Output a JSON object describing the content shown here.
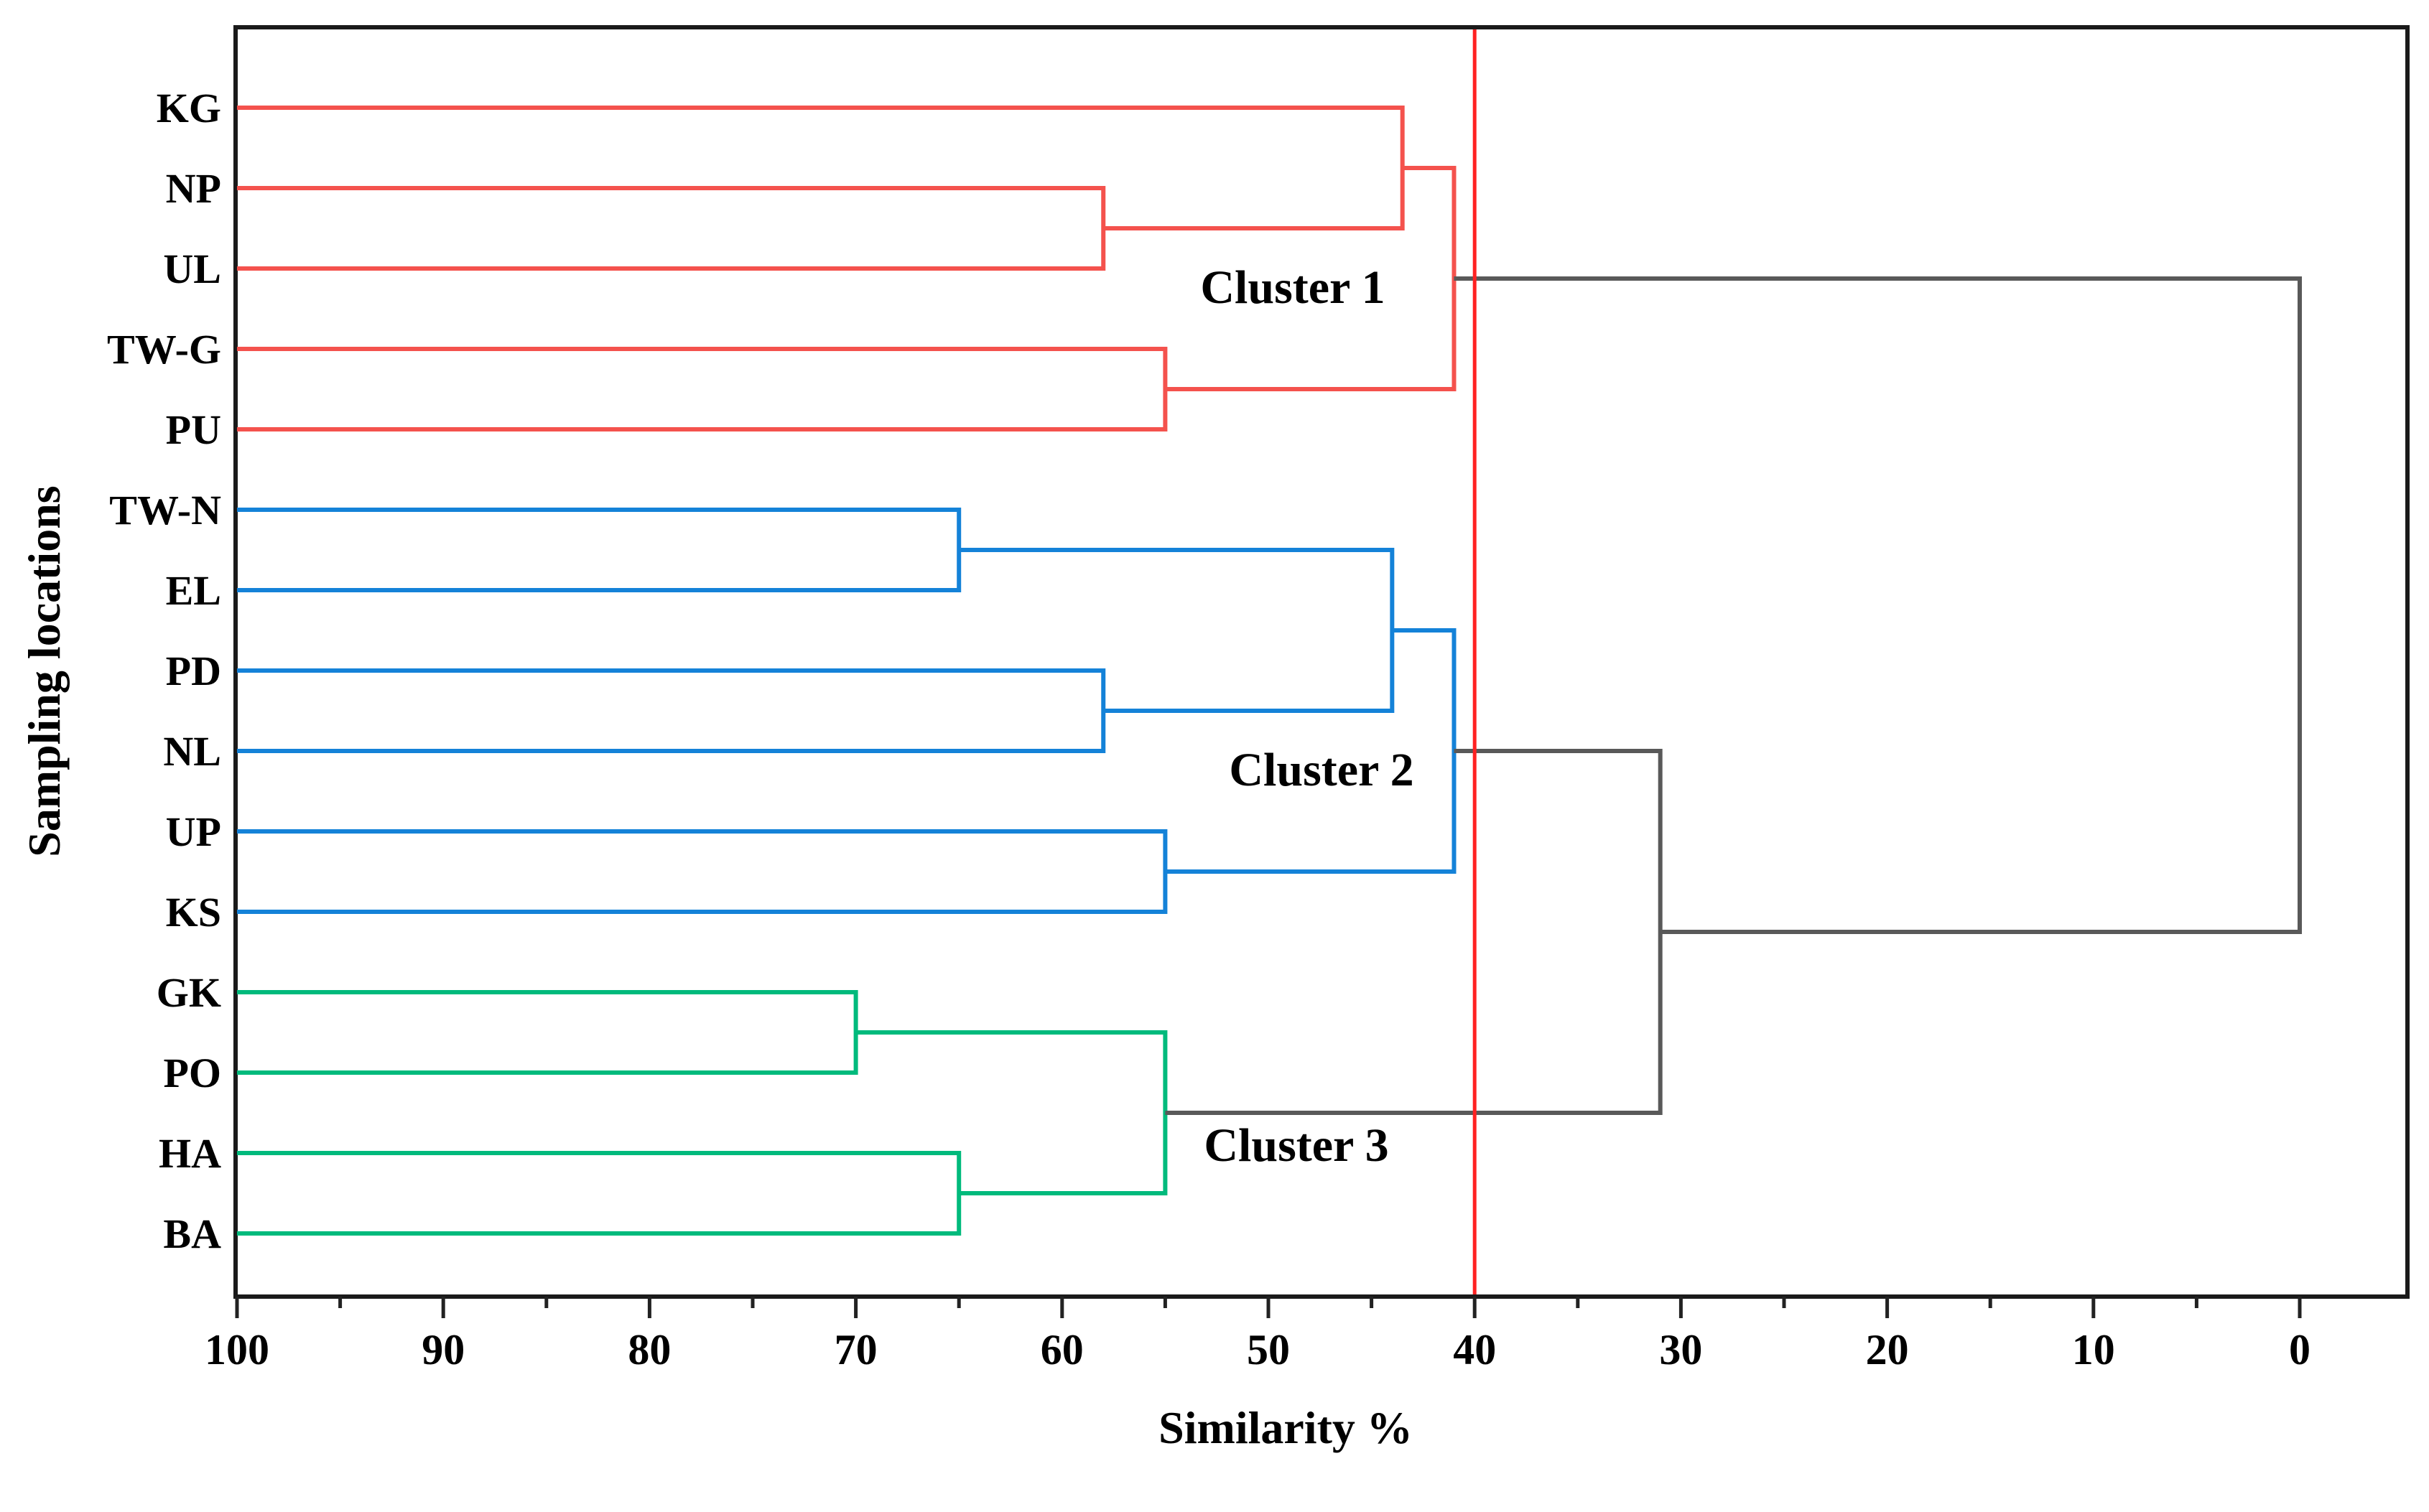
{
  "chart_data": {
    "type": "dendrogram",
    "orientation": "horizontal, root at right, axis reversed (100 left to 0 right)",
    "title": "",
    "xlabel": "Similarity %",
    "ylabel": "Sampling locations",
    "x_axis": {
      "min": 0,
      "max": 100,
      "reversed": true,
      "major_ticks": [
        100,
        90,
        80,
        70,
        60,
        50,
        40,
        30,
        20,
        10,
        0
      ],
      "minor_ticks": [
        95,
        85,
        75,
        65,
        55,
        45,
        35,
        25,
        15,
        5
      ],
      "grid": false
    },
    "threshold_line": {
      "similarity": 40,
      "color": "#ff2222"
    },
    "leaves": [
      "KG",
      "NP",
      "UL",
      "TW-G",
      "PU",
      "TW-N",
      "EL",
      "PD",
      "NL",
      "UP",
      "KS",
      "GK",
      "PO",
      "HA",
      "BA"
    ],
    "clusters": [
      {
        "key": "cluster1",
        "label": "Cluster 1",
        "members": [
          "KG",
          "NP",
          "UL",
          "TW-G",
          "PU"
        ],
        "color": "#f4524d"
      },
      {
        "key": "cluster2",
        "label": "Cluster 2",
        "members": [
          "TW-N",
          "EL",
          "PD",
          "NL",
          "UP",
          "KS"
        ],
        "color": "#1482d8"
      },
      {
        "key": "cluster3",
        "label": "Cluster 3",
        "members": [
          "GK",
          "PO",
          "HA",
          "BA"
        ],
        "color": "#00ba7c"
      }
    ],
    "group_colors": {
      "cluster1": "#f4524d",
      "cluster2": "#1482d8",
      "cluster3": "#00ba7c",
      "linkage": "#595959"
    },
    "merges": [
      {
        "id": "M1",
        "a": "NP",
        "b": "UL",
        "similarity": 58,
        "group": "cluster1"
      },
      {
        "id": "M2",
        "a": "KG",
        "b": "M1",
        "similarity": 43.5,
        "group": "cluster1"
      },
      {
        "id": "M3",
        "a": "TW-G",
        "b": "PU",
        "similarity": 55,
        "group": "cluster1"
      },
      {
        "id": "M4",
        "a": "M2",
        "b": "M3",
        "similarity": 41,
        "group": "cluster1"
      },
      {
        "id": "M5",
        "a": "TW-N",
        "b": "EL",
        "similarity": 65,
        "group": "cluster2"
      },
      {
        "id": "M6",
        "a": "PD",
        "b": "NL",
        "similarity": 58,
        "group": "cluster2"
      },
      {
        "id": "M7",
        "a": "M5",
        "b": "M6",
        "similarity": 44,
        "group": "cluster2"
      },
      {
        "id": "M8",
        "a": "UP",
        "b": "KS",
        "similarity": 55,
        "group": "cluster2"
      },
      {
        "id": "M9",
        "a": "M7",
        "b": "M8",
        "similarity": 41,
        "group": "cluster2"
      },
      {
        "id": "M10",
        "a": "GK",
        "b": "PO",
        "similarity": 70,
        "group": "cluster3"
      },
      {
        "id": "M11",
        "a": "HA",
        "b": "BA",
        "similarity": 65,
        "group": "cluster3"
      },
      {
        "id": "M12",
        "a": "M10",
        "b": "M11",
        "similarity": 55,
        "group": "cluster3"
      },
      {
        "id": "M13",
        "a": "M9",
        "b": "M12",
        "similarity": 31,
        "group": "linkage"
      },
      {
        "id": "M14",
        "a": "M4",
        "b": "M13",
        "similarity": 0,
        "group": "linkage"
      }
    ],
    "frame_color": "#1a1a1a"
  }
}
